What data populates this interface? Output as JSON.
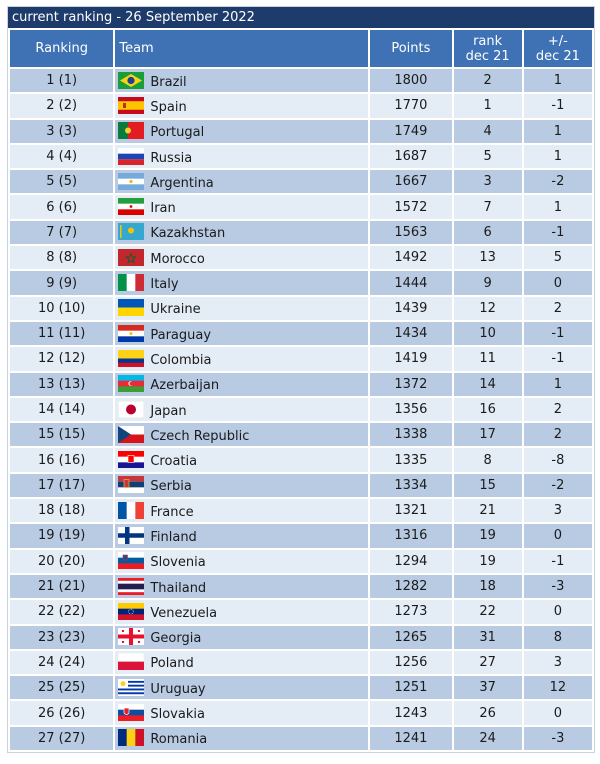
{
  "title": "current ranking - 26 September 2022",
  "headers": {
    "ranking": "Ranking",
    "team": "Team",
    "points": "Points",
    "rank_dec21_line1": "rank",
    "rank_dec21_line2": "dec 21",
    "diff_line1": "+/-",
    "diff_line2": "dec 21"
  },
  "rows": [
    {
      "ranking": "1 (1)",
      "team": "Brazil",
      "flag": "brazil-flag-icon",
      "points": "1800",
      "rank": "2",
      "diff": "1"
    },
    {
      "ranking": "2 (2)",
      "team": "Spain",
      "flag": "spain-flag-icon",
      "points": "1770",
      "rank": "1",
      "diff": "-1"
    },
    {
      "ranking": "3 (3)",
      "team": "Portugal",
      "flag": "portugal-flag-icon",
      "points": "1749",
      "rank": "4",
      "diff": "1"
    },
    {
      "ranking": "4 (4)",
      "team": "Russia",
      "flag": "russia-flag-icon",
      "points": "1687",
      "rank": "5",
      "diff": "1"
    },
    {
      "ranking": "5 (5)",
      "team": "Argentina",
      "flag": "argentina-flag-icon",
      "points": "1667",
      "rank": "3",
      "diff": "-2"
    },
    {
      "ranking": "6 (6)",
      "team": "Iran",
      "flag": "iran-flag-icon",
      "points": "1572",
      "rank": "7",
      "diff": "1"
    },
    {
      "ranking": "7 (7)",
      "team": "Kazakhstan",
      "flag": "kazakhstan-flag-icon",
      "points": "1563",
      "rank": "6",
      "diff": "-1"
    },
    {
      "ranking": "8 (8)",
      "team": "Morocco",
      "flag": "morocco-flag-icon",
      "points": "1492",
      "rank": "13",
      "diff": "5"
    },
    {
      "ranking": "9 (9)",
      "team": "Italy",
      "flag": "italy-flag-icon",
      "points": "1444",
      "rank": "9",
      "diff": "0"
    },
    {
      "ranking": "10 (10)",
      "team": "Ukraine",
      "flag": "ukraine-flag-icon",
      "points": "1439",
      "rank": "12",
      "diff": "2"
    },
    {
      "ranking": "11 (11)",
      "team": "Paraguay",
      "flag": "paraguay-flag-icon",
      "points": "1434",
      "rank": "10",
      "diff": "-1"
    },
    {
      "ranking": "12 (12)",
      "team": "Colombia",
      "flag": "colombia-flag-icon",
      "points": "1419",
      "rank": "11",
      "diff": "-1"
    },
    {
      "ranking": "13 (13)",
      "team": "Azerbaijan",
      "flag": "azerbaijan-flag-icon",
      "points": "1372",
      "rank": "14",
      "diff": "1"
    },
    {
      "ranking": "14 (14)",
      "team": "Japan",
      "flag": "japan-flag-icon",
      "points": "1356",
      "rank": "16",
      "diff": "2"
    },
    {
      "ranking": "15 (15)",
      "team": "Czech Republic",
      "flag": "czech-republic-flag-icon",
      "points": "1338",
      "rank": "17",
      "diff": "2"
    },
    {
      "ranking": "16 (16)",
      "team": "Croatia",
      "flag": "croatia-flag-icon",
      "points": "1335",
      "rank": "8",
      "diff": "-8"
    },
    {
      "ranking": "17 (17)",
      "team": "Serbia",
      "flag": "serbia-flag-icon",
      "points": "1334",
      "rank": "15",
      "diff": "-2"
    },
    {
      "ranking": "18 (18)",
      "team": "France",
      "flag": "france-flag-icon",
      "points": "1321",
      "rank": "21",
      "diff": "3"
    },
    {
      "ranking": "19 (19)",
      "team": "Finland",
      "flag": "finland-flag-icon",
      "points": "1316",
      "rank": "19",
      "diff": "0"
    },
    {
      "ranking": "20 (20)",
      "team": "Slovenia",
      "flag": "slovenia-flag-icon",
      "points": "1294",
      "rank": "19",
      "diff": "-1"
    },
    {
      "ranking": "21 (21)",
      "team": "Thailand",
      "flag": "thailand-flag-icon",
      "points": "1282",
      "rank": "18",
      "diff": "-3"
    },
    {
      "ranking": "22 (22)",
      "team": "Venezuela",
      "flag": "venezuela-flag-icon",
      "points": "1273",
      "rank": "22",
      "diff": "0"
    },
    {
      "ranking": "23 (23)",
      "team": "Georgia",
      "flag": "georgia-flag-icon",
      "points": "1265",
      "rank": "31",
      "diff": "8"
    },
    {
      "ranking": "24 (24)",
      "team": "Poland",
      "flag": "poland-flag-icon",
      "points": "1256",
      "rank": "27",
      "diff": "3"
    },
    {
      "ranking": "25 (25)",
      "team": "Uruguay",
      "flag": "uruguay-flag-icon",
      "points": "1251",
      "rank": "37",
      "diff": "12"
    },
    {
      "ranking": "26 (26)",
      "team": "Slovakia",
      "flag": "slovakia-flag-icon",
      "points": "1243",
      "rank": "26",
      "diff": "0"
    },
    {
      "ranking": "27 (27)",
      "team": "Romania",
      "flag": "romania-flag-icon",
      "points": "1241",
      "rank": "24",
      "diff": "-3"
    }
  ]
}
